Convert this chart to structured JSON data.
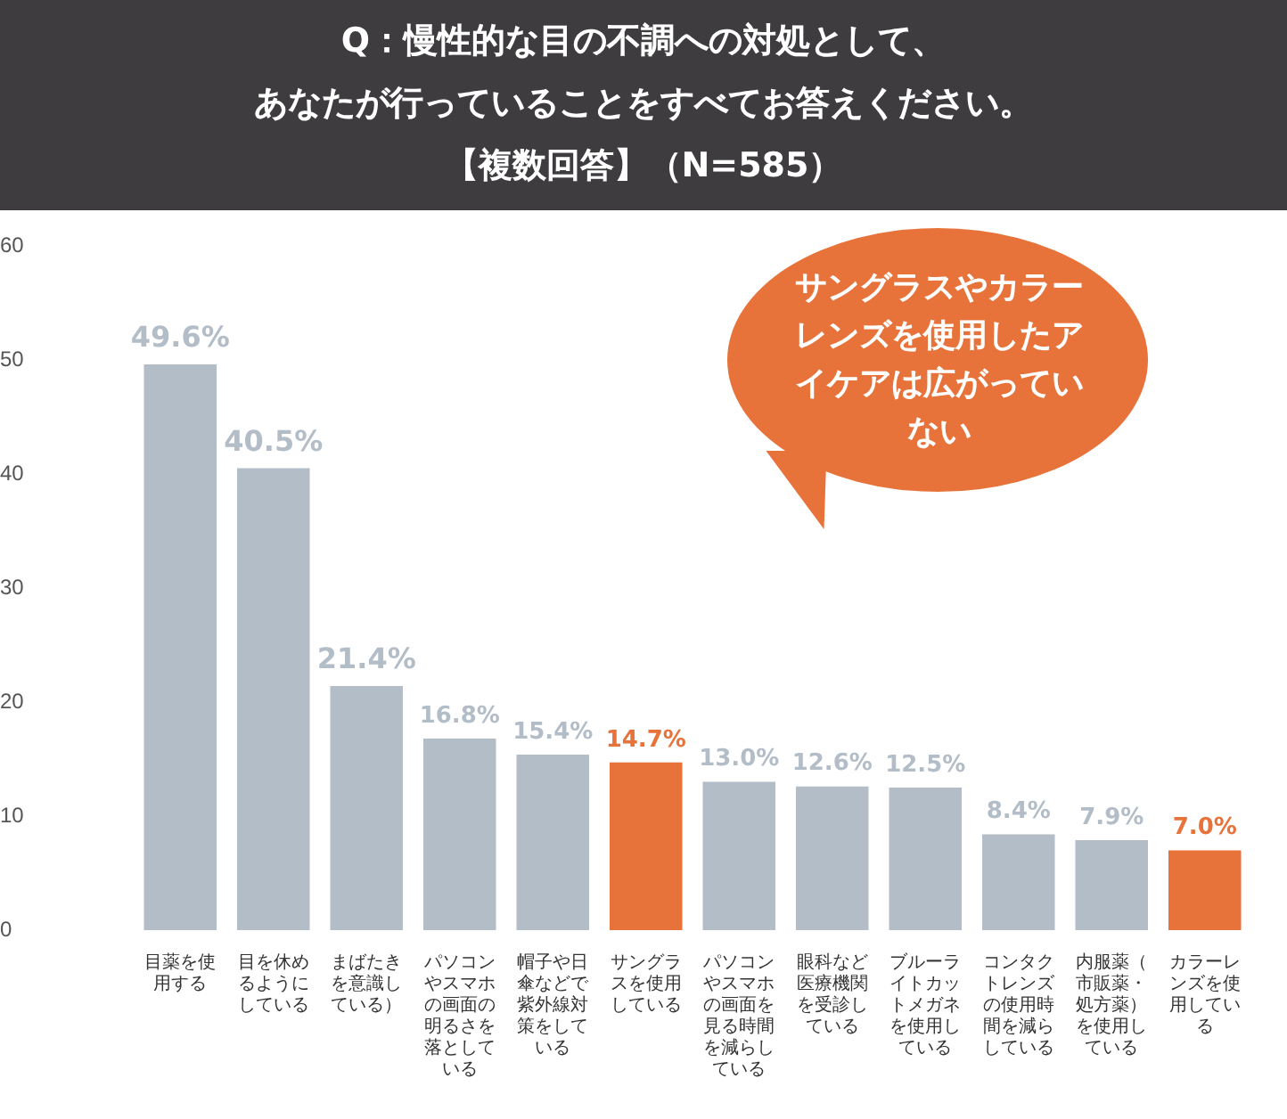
{
  "chart_data": {
    "type": "bar",
    "title": "Q：慢性的な目の不調への対処として、あなたが行っていることをすべてお答えください。",
    "subtitle": "【複数回答】（N=585）",
    "categories": [
      "目薬を使用する",
      "目を休めるようにしている",
      "まばたきを意識している）",
      "パソコンやスマホの画面の明るさを落としている",
      "帽子や日傘などで紫外線対策をしている",
      "サングラスを使用している",
      "パソコンやスマホの画面を見る時間を減らしている",
      "眼科など医療機関を受診している",
      "ブルーライトカットメガネを使用している",
      "コンタクトレンズの使用時間を減らしている",
      "内服薬（市販薬・処方薬）を使用している",
      "カラーレンズを使用している"
    ],
    "values": [
      49.6,
      40.5,
      21.4,
      16.8,
      15.4,
      14.7,
      13.0,
      12.6,
      12.5,
      8.4,
      7.9,
      7.0
    ],
    "value_labels": [
      "49.6%",
      "40.5%",
      "21.4%",
      "16.8%",
      "15.4%",
      "14.7%",
      "13.0%",
      "12.6%",
      "12.5%",
      "8.4%",
      "7.9%",
      "7.0%"
    ],
    "colors": [
      "#b3bdc7",
      "#b3bdc7",
      "#b3bdc7",
      "#b3bdc7",
      "#b3bdc7",
      "#e8733a",
      "#b3bdc7",
      "#b3bdc7",
      "#b3bdc7",
      "#b3bdc7",
      "#b3bdc7",
      "#e8733a"
    ],
    "ylim": [
      0,
      60
    ],
    "yticks": [
      0,
      10,
      20,
      30,
      40,
      50,
      60
    ],
    "grid": false,
    "legend": false,
    "annotations": [
      "サングラスやカラーレンズを使用したアイケアは広がっていない"
    ]
  }
}
